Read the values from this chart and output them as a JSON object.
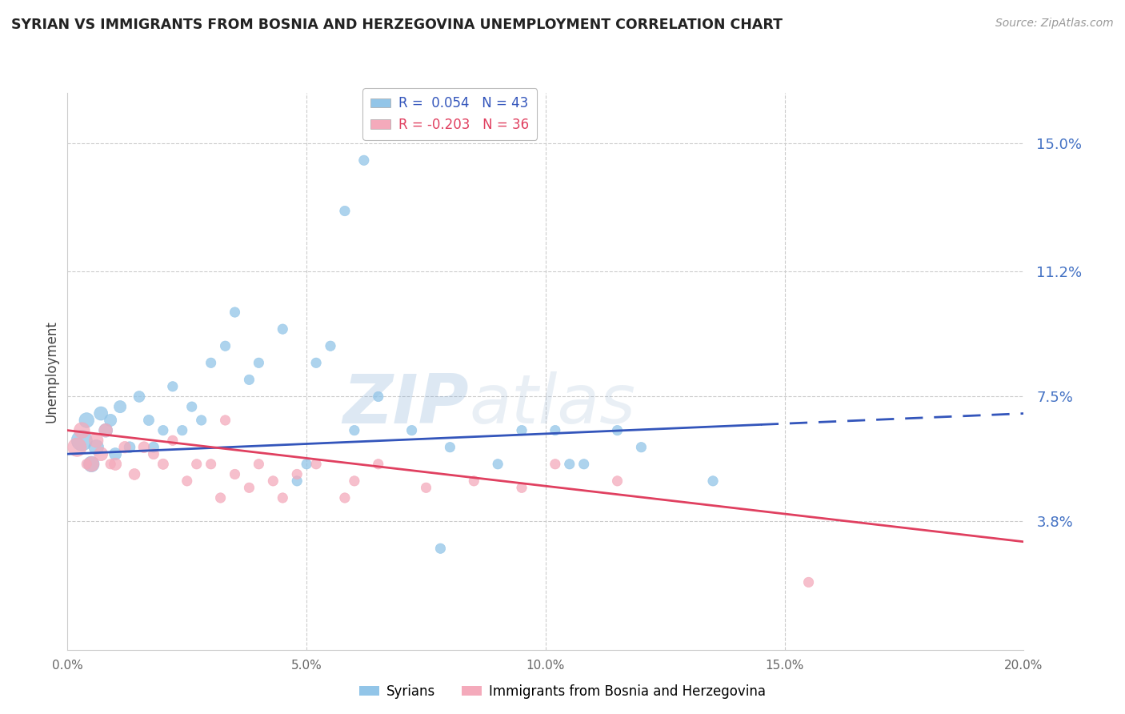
{
  "title": "SYRIAN VS IMMIGRANTS FROM BOSNIA AND HERZEGOVINA UNEMPLOYMENT CORRELATION CHART",
  "source": "Source: ZipAtlas.com",
  "ylabel": "Unemployment",
  "x_min": 0.0,
  "x_max": 20.0,
  "y_min": 0.0,
  "y_max": 16.5,
  "yticks": [
    3.8,
    7.5,
    11.2,
    15.0
  ],
  "ytick_labels": [
    "3.8%",
    "7.5%",
    "11.2%",
    "15.0%"
  ],
  "xticks": [
    0.0,
    5.0,
    10.0,
    15.0,
    20.0
  ],
  "xtick_labels": [
    "0.0%",
    "5.0%",
    "10.0%",
    "15.0%",
    "20.0%"
  ],
  "blue_R": 0.054,
  "blue_N": 43,
  "pink_R": -0.203,
  "pink_N": 36,
  "blue_color": "#92C5E8",
  "pink_color": "#F4AABB",
  "blue_line_color": "#3355BB",
  "pink_line_color": "#E04060",
  "watermark_zip": "ZIP",
  "watermark_atlas": "atlas",
  "legend_blue_label": "Syrians",
  "legend_pink_label": "Immigrants from Bosnia and Herzegovina",
  "blue_scatter_x": [
    0.3,
    0.4,
    0.5,
    0.6,
    0.7,
    0.8,
    0.9,
    1.0,
    1.1,
    1.3,
    1.5,
    1.7,
    1.8,
    2.0,
    2.2,
    2.4,
    2.6,
    2.8,
    3.0,
    3.3,
    3.5,
    3.8,
    4.0,
    4.5,
    5.2,
    5.5,
    5.8,
    6.2,
    6.5,
    7.2,
    8.0,
    9.5,
    10.2,
    10.8,
    11.5,
    12.0,
    13.5,
    4.8,
    5.0,
    7.8,
    9.0,
    10.5,
    6.0
  ],
  "blue_scatter_y": [
    6.2,
    6.8,
    5.5,
    6.0,
    7.0,
    6.5,
    6.8,
    5.8,
    7.2,
    6.0,
    7.5,
    6.8,
    6.0,
    6.5,
    7.8,
    6.5,
    7.2,
    6.8,
    8.5,
    9.0,
    10.0,
    8.0,
    8.5,
    9.5,
    8.5,
    9.0,
    13.0,
    14.5,
    7.5,
    6.5,
    6.0,
    6.5,
    6.5,
    5.5,
    6.5,
    6.0,
    5.0,
    5.0,
    5.5,
    3.0,
    5.5,
    5.5,
    6.5
  ],
  "blue_sizes": [
    350,
    180,
    200,
    180,
    150,
    150,
    120,
    120,
    120,
    100,
    100,
    90,
    90,
    80,
    80,
    80,
    80,
    80,
    80,
    80,
    80,
    80,
    80,
    80,
    80,
    80,
    80,
    80,
    80,
    80,
    80,
    80,
    80,
    80,
    80,
    80,
    80,
    80,
    80,
    80,
    80,
    80,
    80
  ],
  "pink_scatter_x": [
    0.2,
    0.3,
    0.5,
    0.6,
    0.7,
    0.8,
    1.0,
    1.2,
    1.4,
    1.6,
    1.8,
    2.0,
    2.2,
    2.5,
    2.7,
    3.0,
    3.3,
    3.5,
    3.8,
    4.0,
    4.3,
    4.8,
    5.2,
    6.0,
    6.5,
    7.5,
    8.5,
    9.5,
    10.2,
    11.5,
    5.8,
    3.2,
    4.5,
    15.5,
    0.4,
    0.9
  ],
  "pink_scatter_y": [
    6.0,
    6.5,
    5.5,
    6.2,
    5.8,
    6.5,
    5.5,
    6.0,
    5.2,
    6.0,
    5.8,
    5.5,
    6.2,
    5.0,
    5.5,
    5.5,
    6.8,
    5.2,
    4.8,
    5.5,
    5.0,
    5.2,
    5.5,
    5.0,
    5.5,
    4.8,
    5.0,
    4.8,
    5.5,
    5.0,
    4.5,
    4.5,
    4.5,
    2.0,
    5.5,
    5.5
  ],
  "pink_sizes": [
    280,
    200,
    180,
    160,
    150,
    140,
    120,
    110,
    100,
    100,
    90,
    90,
    80,
    80,
    80,
    80,
    80,
    80,
    80,
    80,
    80,
    80,
    80,
    80,
    80,
    80,
    80,
    80,
    80,
    80,
    80,
    80,
    80,
    80,
    80,
    80
  ],
  "blue_line_x0": 0.0,
  "blue_line_y0": 5.8,
  "blue_line_x1": 20.0,
  "blue_line_y1": 7.0,
  "blue_solid_end": 14.5,
  "pink_line_x0": 0.0,
  "pink_line_y0": 6.5,
  "pink_line_x1": 20.0,
  "pink_line_y1": 3.2
}
